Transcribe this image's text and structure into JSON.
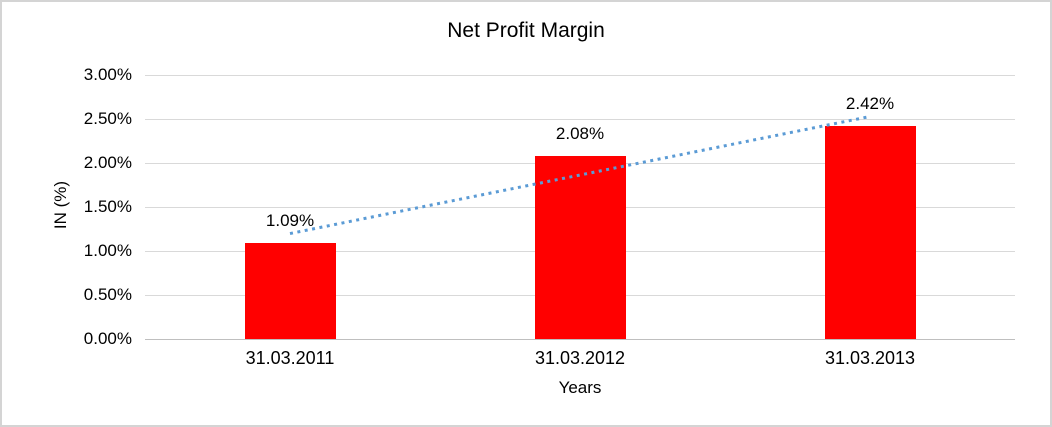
{
  "chart_data": {
    "type": "bar",
    "title": "Net Profit Margin",
    "xlabel": "Years",
    "ylabel": "IN (%)",
    "categories": [
      "31.03.2011",
      "31.03.2012",
      "31.03.2013"
    ],
    "values": [
      1.09,
      2.08,
      2.42
    ],
    "data_labels": [
      "1.09%",
      "2.08%",
      "2.42%"
    ],
    "ylim": [
      0,
      3
    ],
    "ytick_step": 0.5,
    "ytick_labels": [
      "0.00%",
      "0.50%",
      "1.00%",
      "1.50%",
      "2.00%",
      "2.50%",
      "3.00%"
    ],
    "grid": true,
    "legend": "none",
    "bar_color": "#ff0000",
    "gridline_color": "#d9d9d9",
    "axis_line_color": "#bfbfbf",
    "text_color": "#000000",
    "trendline": {
      "type": "linear",
      "style": "dotted",
      "color": "#5b9bd5"
    }
  }
}
